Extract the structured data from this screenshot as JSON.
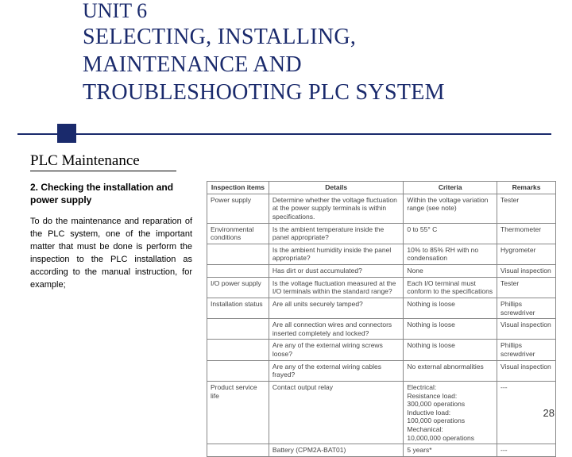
{
  "title": {
    "unit": "UNIT 6",
    "line1": "SELECTING, INSTALLING,",
    "line2": "MAINTENANCE AND",
    "line3": "TROUBLESHOOTING PLC SYSTEM"
  },
  "subtitle": "PLC Maintenance",
  "section_heading": "2. Checking the installation and power supply",
  "paragraph": "To do the maintenance and reparation of the PLC system, one of the important matter that must be done is perform the inspection to the PLC installation as according to the manual instruction, for example;",
  "table": {
    "headers": [
      "Inspection items",
      "Details",
      "Criteria",
      "Remarks"
    ],
    "rows": [
      [
        "Power supply",
        "Determine whether the voltage fluctuation at the power supply terminals is within specifications.",
        "Within the voltage variation range (see note)",
        "Tester"
      ],
      [
        "Environmental conditions",
        "Is the ambient temperature inside the panel appropriate?",
        "0 to 55° C",
        "Thermometer"
      ],
      [
        "",
        "Is the ambient humidity inside the panel appropriate?",
        "10% to 85% RH with no condensation",
        "Hygrometer"
      ],
      [
        "",
        "Has dirt or dust accumulated?",
        "None",
        "Visual inspection"
      ],
      [
        "I/O power supply",
        "Is the voltage fluctuation measured at the I/O terminals within the standard range?",
        "Each I/O terminal must conform to the specifications",
        "Tester"
      ],
      [
        "Installation status",
        "Are all units securely tamped?",
        "Nothing is loose",
        "Phillips screwdriver"
      ],
      [
        "",
        "Are all connection wires and connectors inserted completely and locked?",
        "Nothing is loose",
        "Visual inspection"
      ],
      [
        "",
        "Are any of the external wiring screws loose?",
        "Nothing is loose",
        "Phillips screwdriver"
      ],
      [
        "",
        "Are any of the external wiring cables frayed?",
        "No external abnormalities",
        "Visual inspection"
      ],
      [
        "Product service life",
        "Contact output relay",
        "Electrical:\n  Resistance load:\n  300,000 operations\n  Inductive load:\n  100,000 operations\nMechanical:\n  10,000,000 operations",
        "---"
      ],
      [
        "",
        "Battery (CPM2A-BAT01)",
        "5 years*",
        "---"
      ]
    ]
  },
  "page_number": "28"
}
